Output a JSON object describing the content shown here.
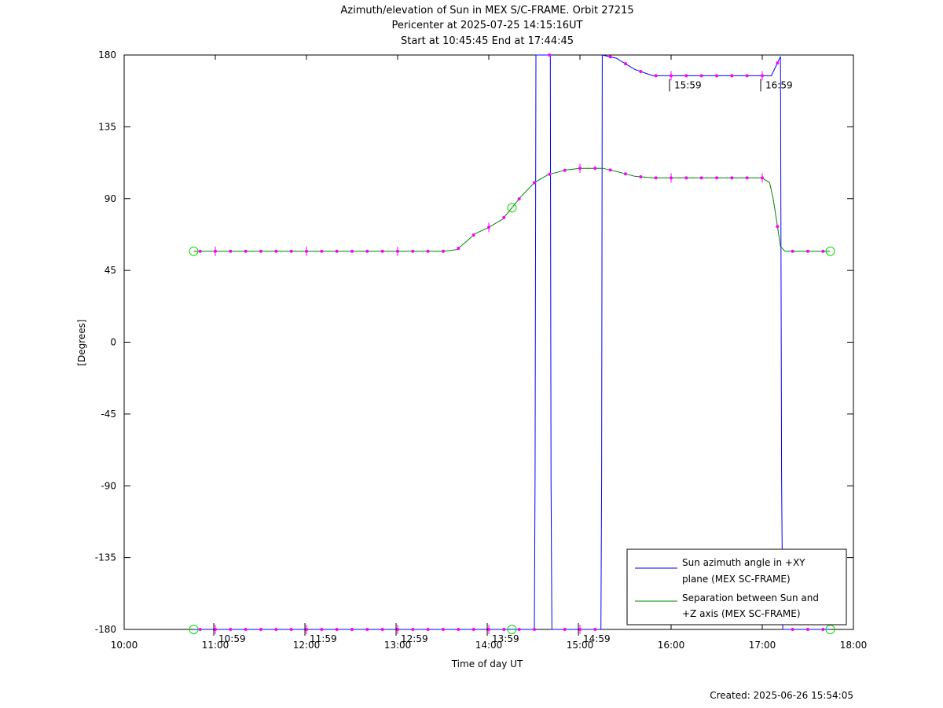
{
  "chart_data": {
    "type": "line",
    "title_lines": [
      "Azimuth/elevation of Sun in MEX S/C-FRAME.  Orbit 27215",
      "Pericenter at 2025-07-25 14:15:16UT",
      "Start at 10:45:45 End at 17:44:45"
    ],
    "xlabel": "Time of day UT",
    "ylabel": "[Degrees]",
    "footer": "Created: 2025-06-26 15:54:05",
    "x_unit": "hours (UT)",
    "xlim": [
      10,
      18
    ],
    "ylim": [
      -180,
      180
    ],
    "xticks": [
      10,
      11,
      12,
      13,
      14,
      15,
      16,
      17,
      18
    ],
    "xtick_labels": [
      "10:00",
      "11:00",
      "12:00",
      "13:00",
      "14:00",
      "15:00",
      "16:00",
      "17:00",
      "18:00"
    ],
    "yticks": [
      -180,
      -135,
      -90,
      -45,
      0,
      45,
      90,
      135,
      180
    ],
    "ytick_labels": [
      "-180",
      "-135",
      "-90",
      "-45",
      "0",
      "45",
      "90",
      "135",
      "180"
    ],
    "legend_position": "bottom-right",
    "colors": {
      "azimuth": "#0000ff",
      "separation": "#008000",
      "markers": "#ff00ff",
      "endpoints": "#00dd00"
    },
    "series": [
      {
        "name": "Sun azimuth angle in +XY plane (MEX SC-FRAME)",
        "legend_lines": [
          "Sun azimuth angle in +XY",
          "plane (MEX SC-FRAME)"
        ],
        "x": [
          10.763,
          11.0,
          11.5,
          12.0,
          12.5,
          13.0,
          13.5,
          14.0,
          14.25,
          14.5,
          14.508,
          14.517,
          14.675,
          14.683,
          14.692,
          15.0,
          15.23,
          15.238,
          15.245,
          15.4,
          15.6,
          15.8,
          16.0,
          16.5,
          17.0,
          17.1,
          17.2,
          17.212,
          17.225,
          17.5,
          17.746
        ],
        "y": [
          -180,
          -180,
          -180,
          -180,
          -180,
          -180,
          -180,
          -180,
          -180,
          -180,
          -85,
          180,
          180,
          -85,
          -180,
          -180,
          -180,
          -85,
          180,
          178,
          171,
          167,
          167,
          167,
          167,
          167,
          179,
          -85,
          -180,
          -180,
          -180
        ]
      },
      {
        "name": "Separation between Sun and +Z axis (MEX SC-FRAME)",
        "legend_lines": [
          "Separation between Sun and",
          "+Z axis (MEX SC-FRAME)"
        ],
        "x": [
          10.763,
          11.0,
          11.5,
          12.0,
          12.5,
          13.0,
          13.5,
          13.65,
          13.75,
          13.85,
          14.0,
          14.15,
          14.25,
          14.35,
          14.5,
          14.65,
          14.85,
          15.0,
          15.25,
          15.4,
          15.6,
          15.8,
          16.0,
          16.5,
          17.0,
          17.08,
          17.12,
          17.16,
          17.2,
          17.25,
          17.5,
          17.746
        ],
        "y": [
          57,
          57,
          57,
          57,
          57,
          57,
          57,
          58,
          63,
          68,
          72,
          77,
          84,
          91,
          100,
          105,
          108,
          109,
          109,
          107,
          104,
          103,
          103,
          103,
          103,
          100,
          90,
          75,
          60,
          57,
          57,
          57
        ]
      }
    ],
    "annotations": [
      {
        "text": "10:59",
        "x": 10.983,
        "y": -180
      },
      {
        "text": "11:59",
        "x": 11.983,
        "y": -180
      },
      {
        "text": "12:59",
        "x": 12.983,
        "y": -180
      },
      {
        "text": "13:59",
        "x": 13.983,
        "y": -180
      },
      {
        "text": "14:59",
        "x": 14.983,
        "y": -180
      },
      {
        "text": "15:59",
        "x": 15.983,
        "y": 167
      },
      {
        "text": "16:59",
        "x": 16.983,
        "y": 167
      }
    ]
  }
}
